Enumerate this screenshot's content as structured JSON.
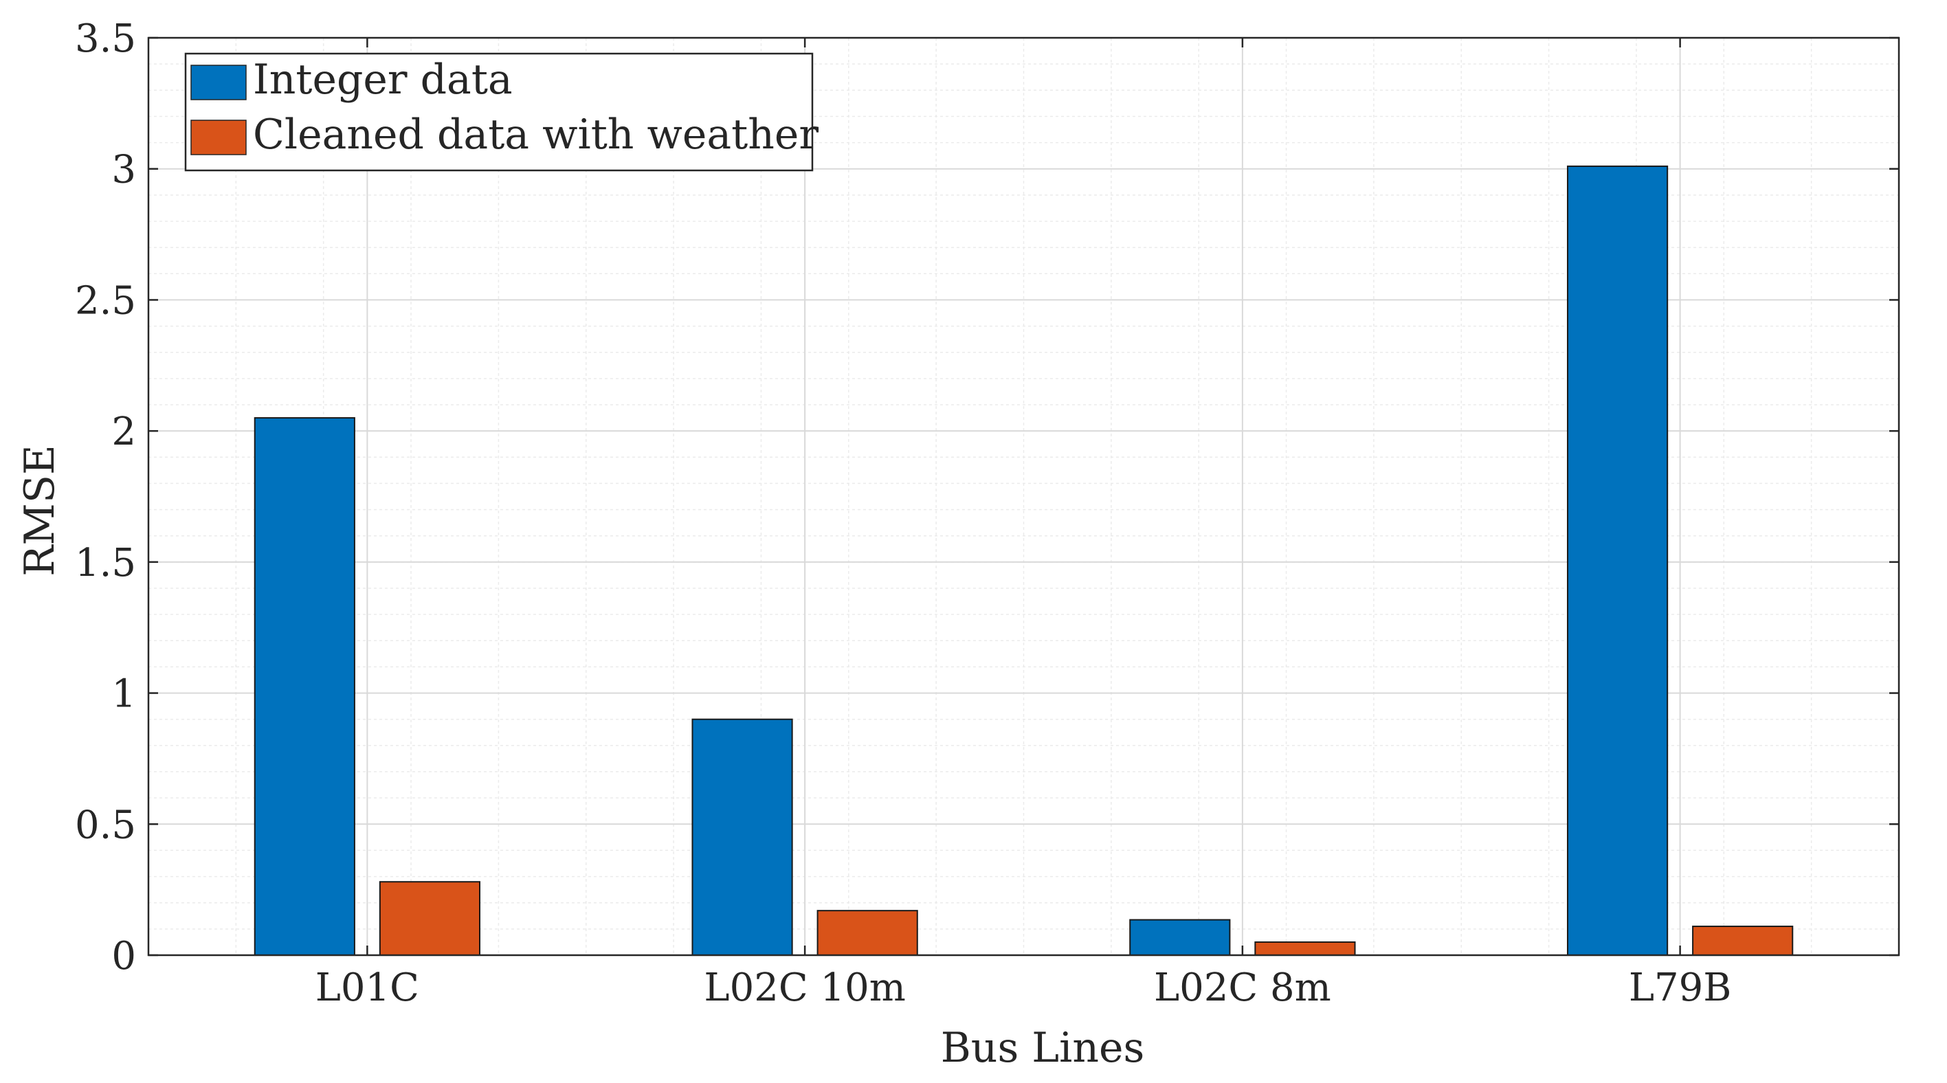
{
  "chart_data": {
    "type": "bar",
    "title": "",
    "xlabel": "Bus Lines",
    "ylabel": "RMSE",
    "categories": [
      "L01C",
      "L02C 10m",
      "L02C 8m",
      "L79B"
    ],
    "series": [
      {
        "name": "Integer data",
        "values": [
          2.05,
          0.9,
          0.135,
          3.01
        ],
        "color": "#0072BD"
      },
      {
        "name": "Cleaned data with weather",
        "values": [
          0.28,
          0.17,
          0.05,
          0.11
        ],
        "color": "#D95319"
      }
    ],
    "ylim": [
      0,
      3.5
    ],
    "yticks": [
      0,
      0.5,
      1,
      1.5,
      2,
      2.5,
      3,
      3.5
    ],
    "ytick_labels": [
      "0",
      "0.5",
      "1",
      "1.5",
      "2",
      "2.5",
      "3",
      "3.5"
    ],
    "grid": true,
    "minor_grid": true,
    "legend_position": "top-left"
  }
}
